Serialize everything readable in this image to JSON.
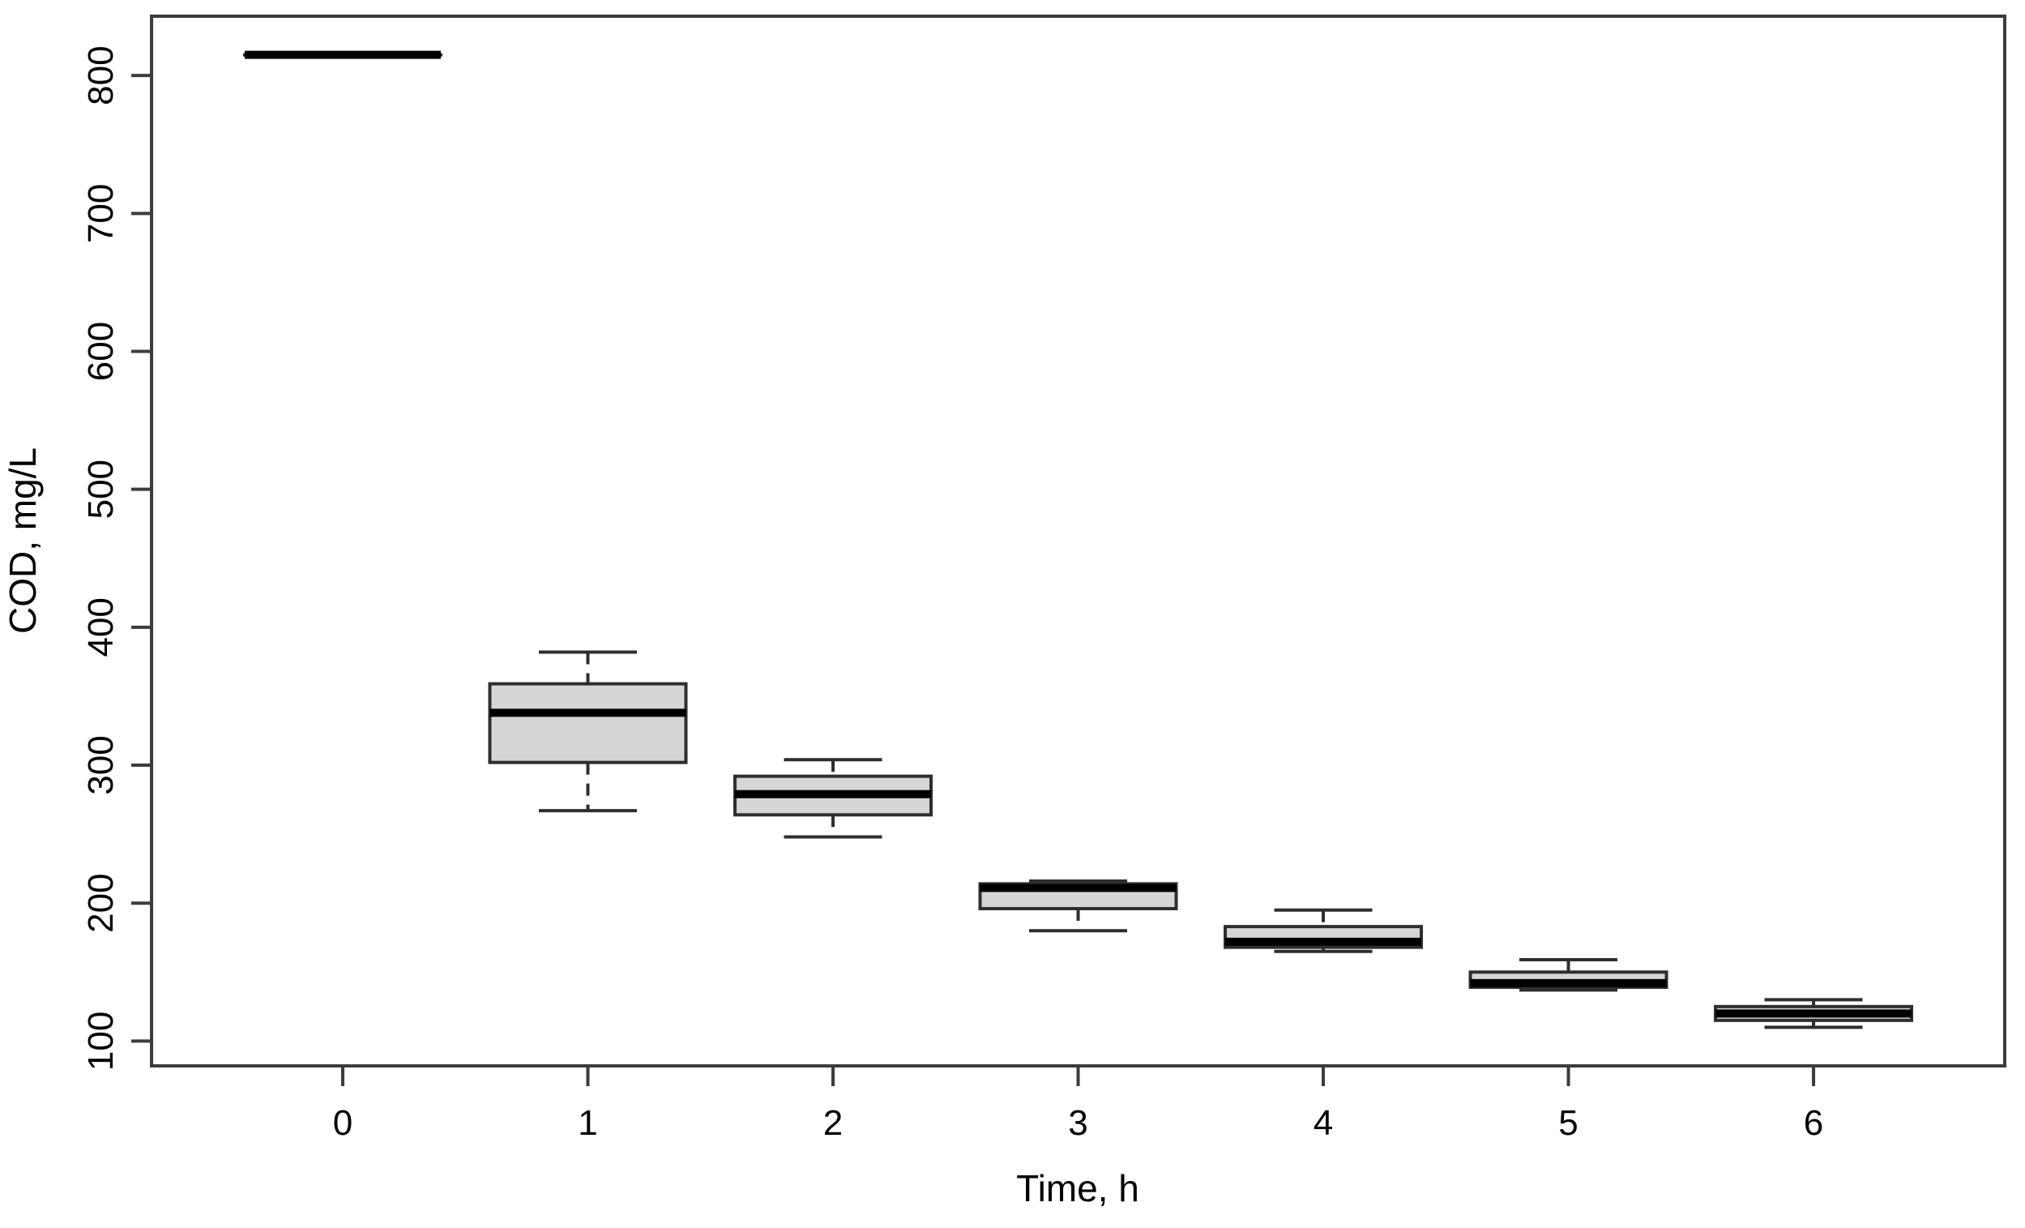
{
  "figure": {
    "background": "#ffffff"
  },
  "chart_data": {
    "type": "boxplot",
    "title": "",
    "xlabel": "Time, h",
    "ylabel": "COD, mg/L",
    "categories": [
      "0",
      "1",
      "2",
      "3",
      "4",
      "5",
      "6"
    ],
    "y_ticks": [
      100,
      200,
      300,
      400,
      500,
      600,
      700,
      800
    ],
    "ylim": [
      82,
      843
    ],
    "grid": false,
    "legend": "none",
    "boxes": [
      {
        "category": "0",
        "min": 815,
        "q1": 815,
        "median": 815,
        "q3": 815,
        "max": 815
      },
      {
        "category": "1",
        "min": 267,
        "q1": 302,
        "median": 338,
        "q3": 359,
        "max": 382
      },
      {
        "category": "2",
        "min": 248,
        "q1": 264,
        "median": 279,
        "q3": 292,
        "max": 304
      },
      {
        "category": "3",
        "min": 180,
        "q1": 196,
        "median": 211,
        "q3": 214,
        "max": 216
      },
      {
        "category": "4",
        "min": 165,
        "q1": 168,
        "median": 172,
        "q3": 183,
        "max": 195
      },
      {
        "category": "5",
        "min": 137,
        "q1": 139,
        "median": 142,
        "q3": 150,
        "max": 159
      },
      {
        "category": "6",
        "min": 110,
        "q1": 115,
        "median": 120,
        "q3": 125,
        "max": 130
      }
    ],
    "colors": {
      "box_fill": "#d6d6d6",
      "box_border": "#2e2e2e",
      "median": "#000000",
      "whisker": "#2e2e2e",
      "axis": "#3c3c3c",
      "text": "#000000",
      "background": "#ffffff"
    }
  }
}
